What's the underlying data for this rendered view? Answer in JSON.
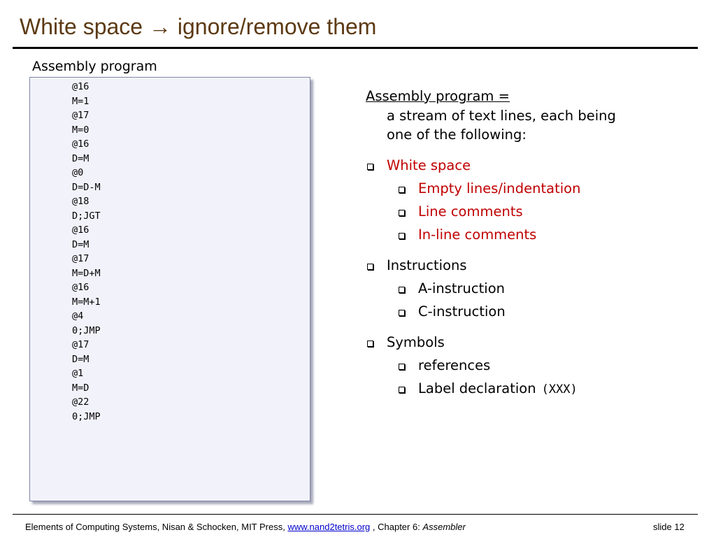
{
  "title": "White space → ignore/remove them",
  "code_label": "Assembly program",
  "code_lines": [
    "@16",
    "M=1",
    "@17",
    "M=0",
    "@16",
    "D=M",
    "@0",
    "D=D-M",
    "@18",
    "D;JGT",
    "@16",
    "D=M",
    "@17",
    "M=D+M",
    "@16",
    "M=M+1",
    "@4",
    "0;JMP",
    "@17",
    "D=M",
    "@1",
    "M=D",
    "@22",
    "0;JMP"
  ],
  "definition": {
    "heading": "Assembly program =",
    "lines": [
      "a stream of text lines, each being",
      "one of the following:"
    ]
  },
  "bullets": [
    {
      "text": "White space",
      "color": "#c00000",
      "sub": [
        {
          "text": "Empty lines/indentation"
        },
        {
          "text": "Line comments"
        },
        {
          "text": "In-line comments"
        }
      ]
    },
    {
      "text": "Instructions",
      "color": "#000000",
      "sub": [
        {
          "text": "A-instruction"
        },
        {
          "text": "C-instruction"
        }
      ]
    },
    {
      "text": "Symbols",
      "color": "#000000",
      "sub": [
        {
          "text": "references"
        },
        {
          "text": "Label declaration",
          "code": "(XXX)"
        }
      ]
    }
  ],
  "footer": {
    "source": "Elements of Computing Systems, Nisan & Schocken, MIT Press,",
    "link": "www.nand2tetris.org",
    "chapter": ", Chapter 6:",
    "chapter_name": "Assembler",
    "slide": "slide 12"
  }
}
